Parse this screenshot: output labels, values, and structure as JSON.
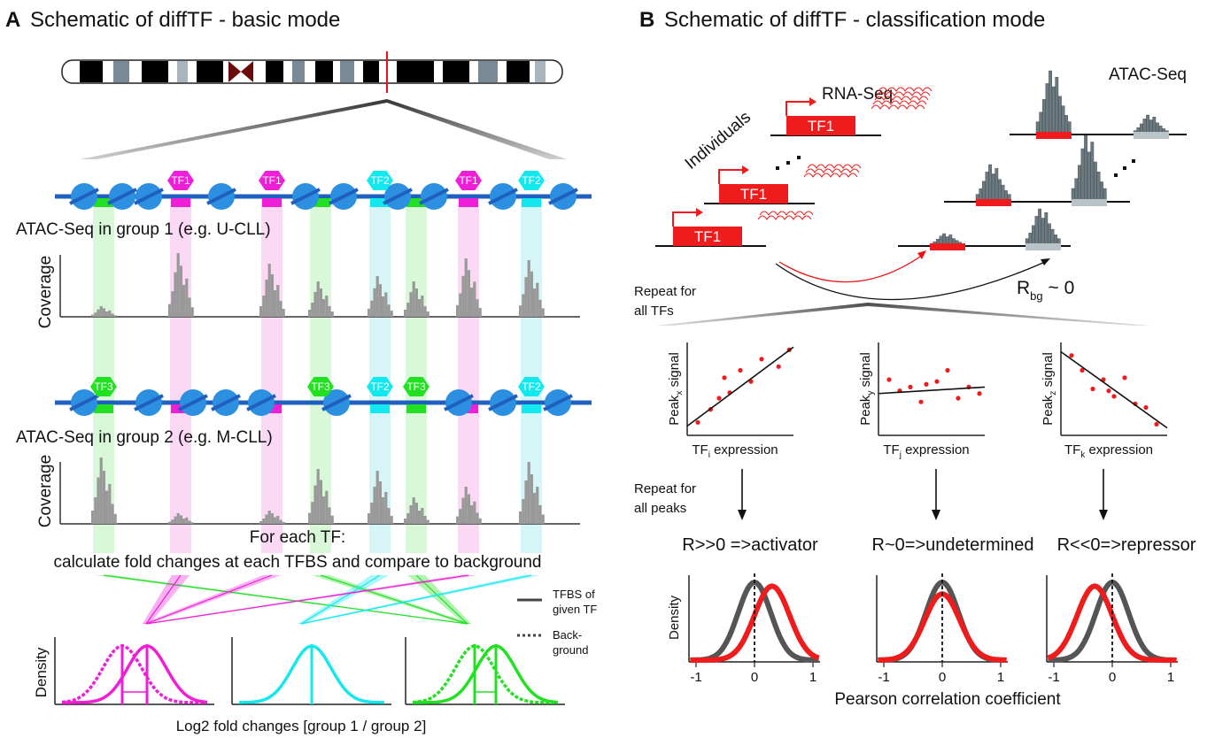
{
  "panel_a": {
    "letter": "A",
    "title": "Schematic of diffTF - basic mode",
    "group1_label": "ATAC-Seq in group 1 (e.g. U-CLL)",
    "group2_label": "ATAC-Seq in group 2 (e.g. M-CLL)",
    "coverage_label": "Coverage",
    "tf_labels_row1": [
      "TF1",
      "TF1",
      "TF2",
      "TF1",
      "TF2"
    ],
    "tf_labels_row2": [
      "TF3",
      "TF3",
      "TF2",
      "TF3",
      "TF2"
    ],
    "foreach_line1": "For each TF:",
    "foreach_line2": "calculate fold changes at each TFBS and compare to background",
    "legend_tfbs_1": "TFBS of",
    "legend_tfbs_2": "given TF",
    "legend_bg_1": "Back-",
    "legend_bg_2": "ground",
    "density_label": "Density",
    "x_label": "Log2 fold changes [group 1 / group 2]"
  },
  "panel_b": {
    "letter": "B",
    "title": "Schematic of diffTF - classification mode",
    "rna_label": "RNA-Seq",
    "atac_label": "ATAC-Seq",
    "individuals_label": "Individuals",
    "tf_box_label": "TF1",
    "rbg_main": "R",
    "rbg_sub": "bg",
    "rbg_tail": " ~ 0",
    "repeat_tfs_1": "Repeat for",
    "repeat_tfs_2": "all TFs",
    "repeat_peaks_1": "Repeat for",
    "repeat_peaks_2": "all peaks",
    "scatter": [
      {
        "ylab_main": "Peak",
        "ylab_sub": "x",
        "ylab_tail": " signal",
        "xlab_main": "TF",
        "xlab_sub": "i",
        "xlab_tail": " expression"
      },
      {
        "ylab_main": "Peak",
        "ylab_sub": "y",
        "ylab_tail": " signal",
        "xlab_main": "TF",
        "xlab_sub": "j",
        "xlab_tail": " expression"
      },
      {
        "ylab_main": "Peak",
        "ylab_sub": "z",
        "ylab_tail": " signal",
        "xlab_main": "TF",
        "xlab_sub": "k",
        "xlab_tail": " expression"
      }
    ],
    "class_labels": [
      "R>>0 =>activator",
      "R~0=>undetermined",
      "R<<0=>repressor"
    ],
    "density_label": "Density",
    "ticks": [
      "-1",
      "0",
      "1"
    ],
    "x_label": "Pearson correlation coefficient"
  },
  "colors": {
    "magenta": "#ee1fd6",
    "cyan": "#14e8ef",
    "green": "#22e022",
    "red": "#ee1c1c",
    "dna_blue": "#1f5fbf",
    "nucleosome": "#2c8fe0",
    "grey_bar": "#999999",
    "dark_grey": "#555555"
  }
}
